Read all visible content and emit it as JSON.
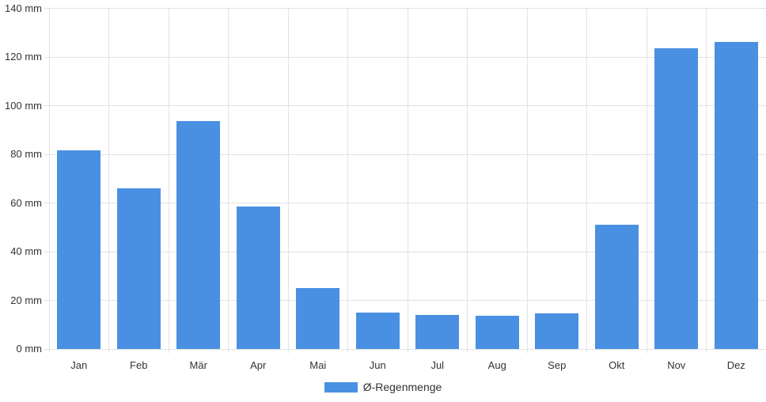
{
  "chart_data": {
    "type": "bar",
    "title": "",
    "xlabel": "",
    "ylabel": "",
    "categories": [
      "Jan",
      "Feb",
      "Mär",
      "Apr",
      "Mai",
      "Jun",
      "Jul",
      "Aug",
      "Sep",
      "Okt",
      "Nov",
      "Dez"
    ],
    "series": [
      {
        "name": "Ø-Regenmenge",
        "values": [
          81.5,
          66,
          93.5,
          58.5,
          25,
          15,
          14,
          13.8,
          14.7,
          51,
          123.5,
          126.3
        ]
      }
    ],
    "ylim": [
      0,
      140
    ],
    "ytick_step": 20,
    "ytick_suffix": " mm",
    "yticks": [
      "0 mm",
      "20 mm",
      "40 mm",
      "60 mm",
      "80 mm",
      "100 mm",
      "120 mm",
      "140 mm"
    ],
    "grid": true,
    "legend_position": "bottom",
    "colors": {
      "bar": "#4A90E2",
      "grid": "#E2E2E2",
      "text": "#333333",
      "background": "#FFFFFF"
    }
  }
}
